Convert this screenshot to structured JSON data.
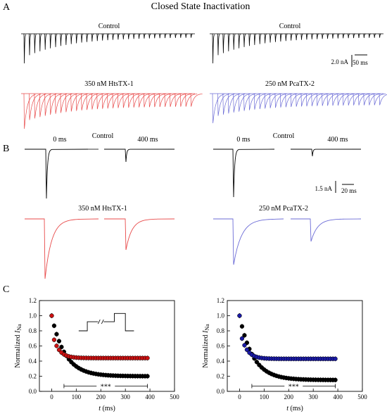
{
  "figure": {
    "title": "Closed State Inactivation",
    "panels": {
      "A": {
        "letter": "A",
        "left_label": "Control",
        "right_label": "Control",
        "left_treat_label": "350 nM HtsTX-1",
        "right_treat_label": "250 nM PcaTX-2",
        "scale_current": "2.0 nA",
        "scale_time": "50 ms"
      },
      "B": {
        "letter": "B",
        "left": {
          "label_0": "0 ms",
          "label_center": "Control",
          "label_400": "400 ms",
          "treat_label": "350 nM HtsTX-1"
        },
        "right": {
          "label_0": "0 ms",
          "label_center": "Control",
          "label_400": "400 ms",
          "treat_label": "250 nM PcaTX-2"
        },
        "scale_current": "1.5 nA",
        "scale_time": "20 ms"
      },
      "C": {
        "letter": "C"
      }
    },
    "colors": {
      "control": "#000000",
      "htstx": "#e84a4a",
      "pcatx": "#6b6bd6",
      "red_marker": "#cc1111",
      "blue_marker": "#1a1aa6"
    }
  },
  "chart_data": [
    {
      "type": "scatter",
      "xlabel_italic": "t",
      "xlabel_unit": " (ms)",
      "ylabel_prefix": "Normalized ",
      "ylabel_italic": "I",
      "ylabel_sub": "Na",
      "xlim": [
        -50,
        500
      ],
      "ylim": [
        0.0,
        1.2
      ],
      "xticks": [
        "0",
        "100",
        "200",
        "300",
        "400",
        "500"
      ],
      "yticks": [
        "0.0",
        "0.2",
        "0.4",
        "0.6",
        "0.8",
        "1.0",
        "1.2"
      ],
      "significance": "***",
      "series": [
        {
          "color": "#cc1111",
          "plateau": 0.44,
          "fast": 0.36,
          "tau": 25,
          "x_start": 0,
          "x_end": 390,
          "step": 10
        },
        {
          "color": "#000000",
          "plateau": 0.2,
          "fast": 0.8,
          "tau": 55,
          "x_start": 0,
          "x_end": 390,
          "step": 10
        }
      ]
    },
    {
      "type": "scatter",
      "xlabel_italic": "t",
      "xlabel_unit": " (ms)",
      "ylabel_prefix": "Normalized ",
      "ylabel_italic": "I",
      "ylabel_sub": "Na",
      "xlim": [
        -50,
        500
      ],
      "ylim": [
        0.0,
        1.2
      ],
      "xticks": [
        "0",
        "100",
        "200",
        "300",
        "400",
        "500"
      ],
      "yticks": [
        "0.0",
        "0.2",
        "0.4",
        "0.6",
        "0.8",
        "1.0",
        "1.2"
      ],
      "significance": "***",
      "series": [
        {
          "color": "#1a1aa6",
          "plateau": 0.43,
          "fast": 0.4,
          "tau": 25,
          "x_start": 0,
          "x_end": 390,
          "step": 10
        },
        {
          "color": "#000000",
          "plateau": 0.15,
          "fast": 0.85,
          "tau": 55,
          "x_start": 0,
          "x_end": 390,
          "step": 10
        }
      ]
    }
  ]
}
